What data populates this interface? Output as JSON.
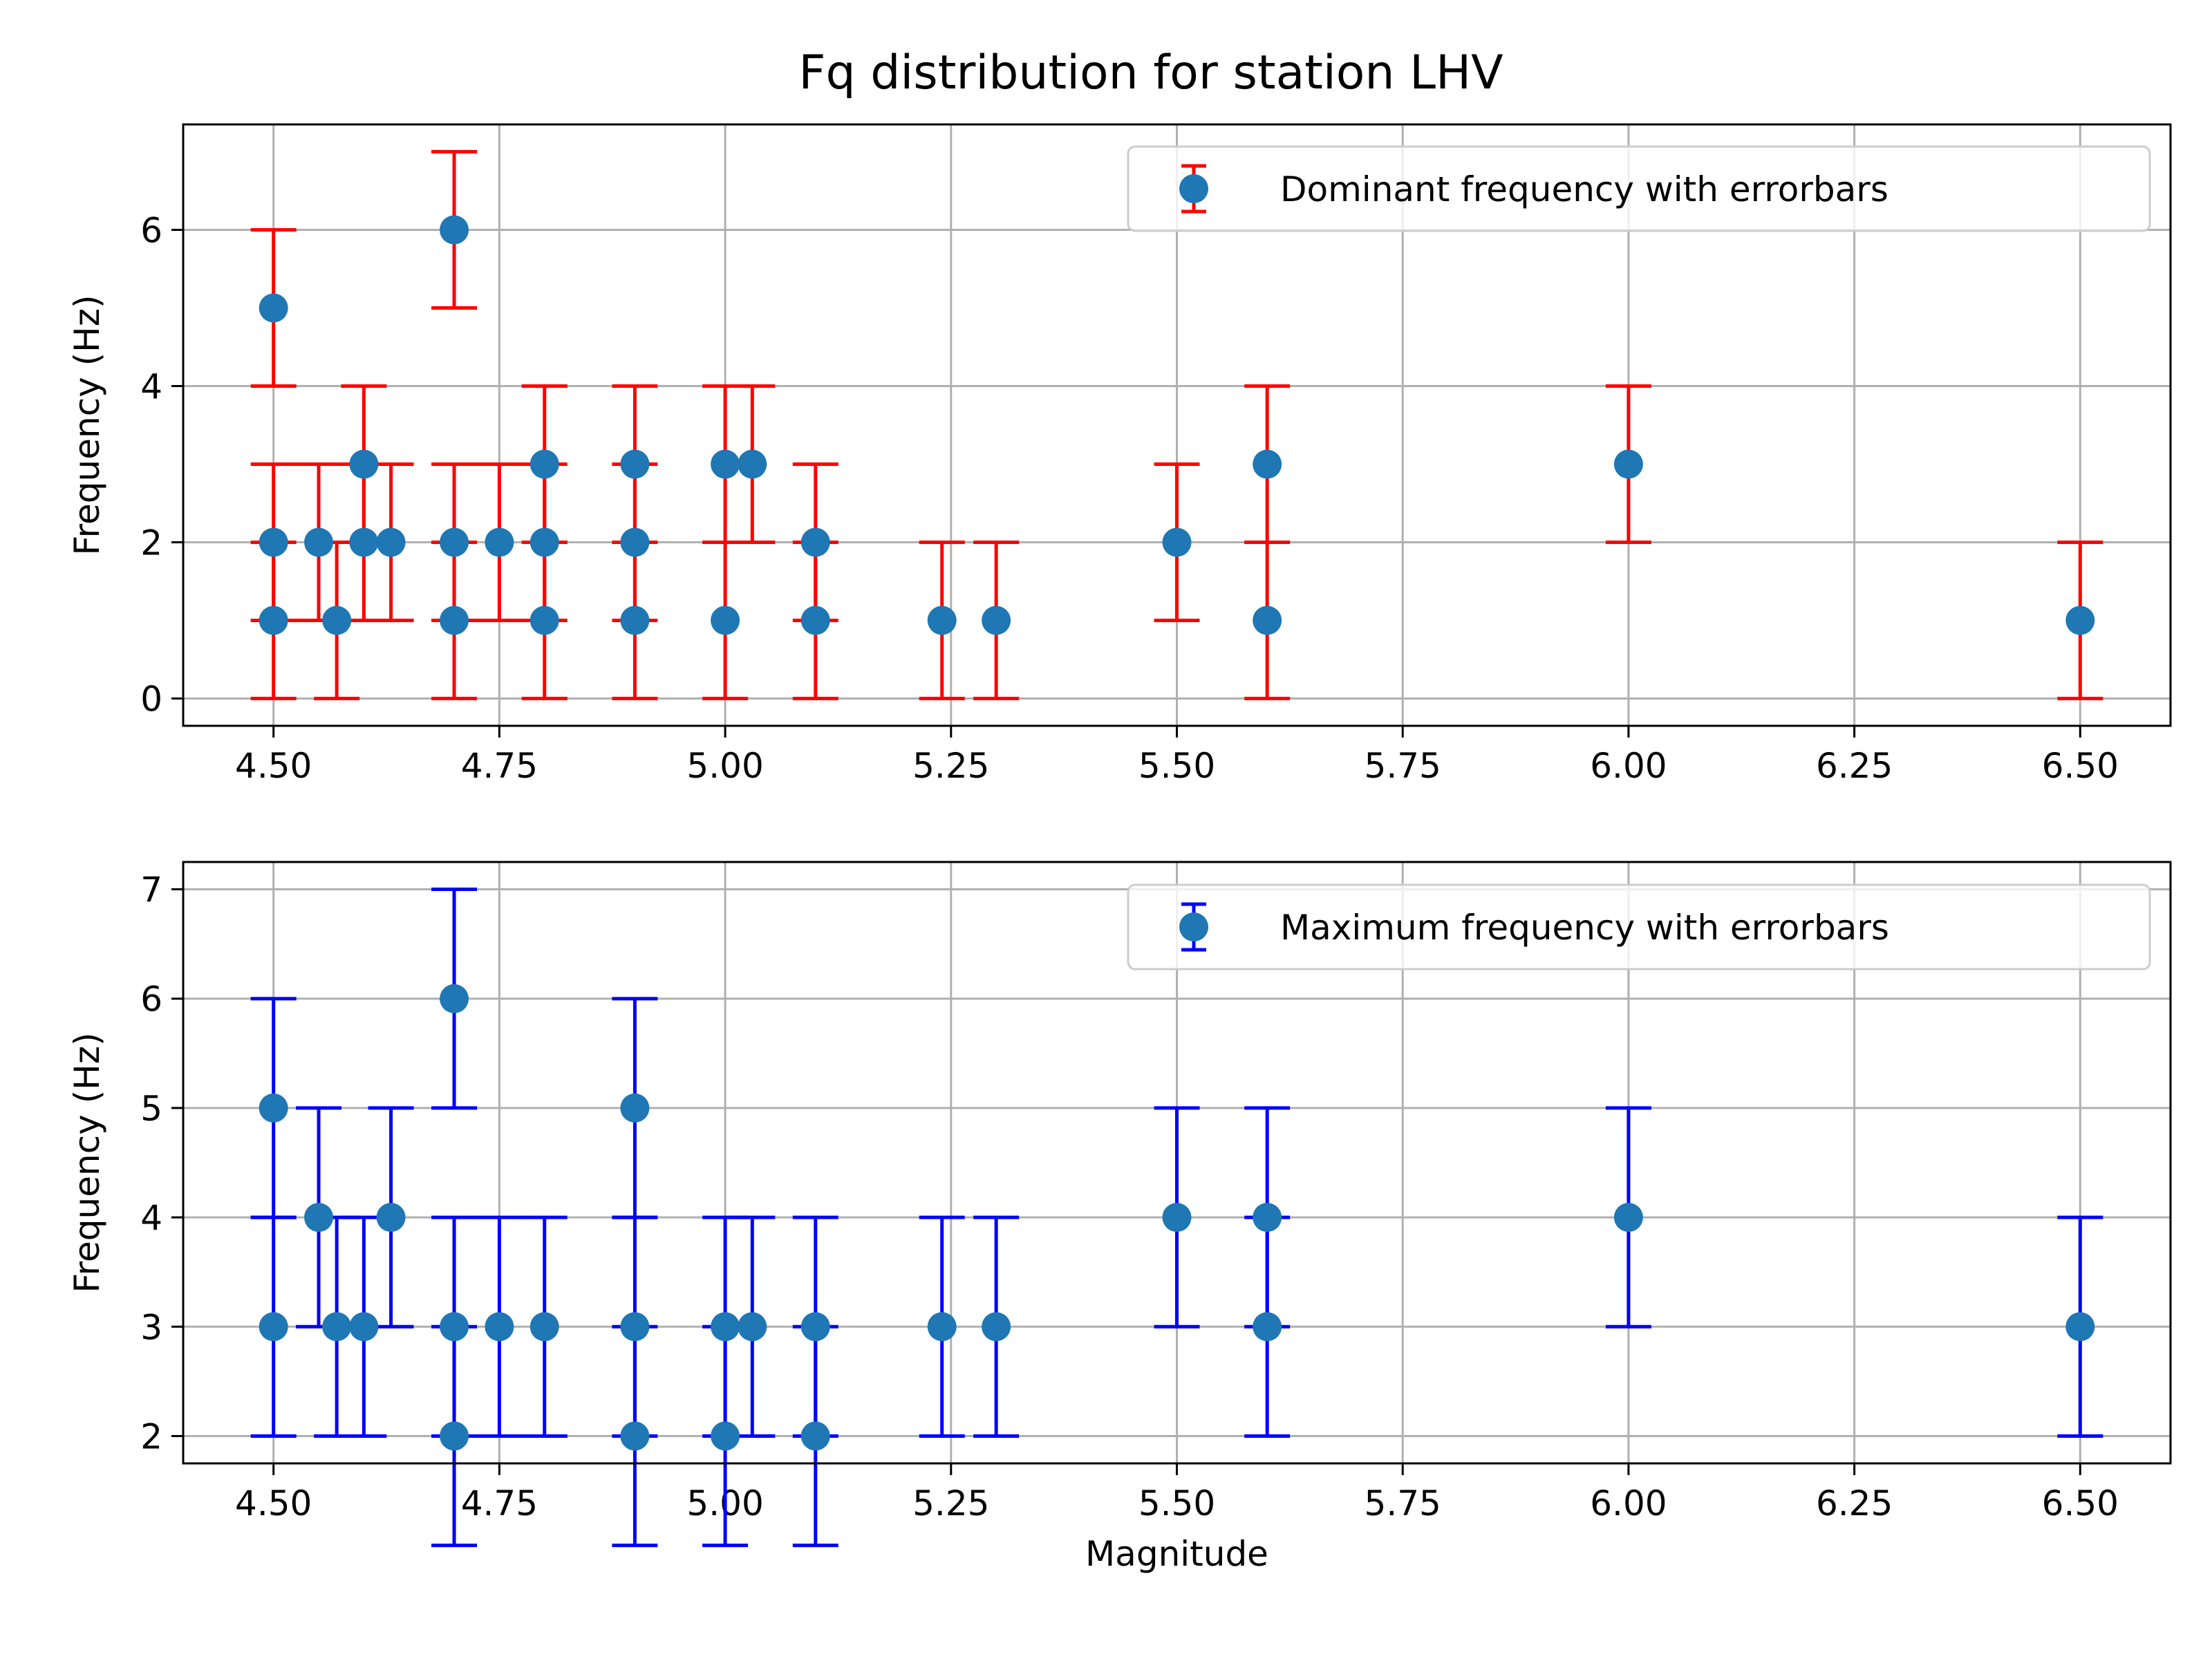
{
  "figure": {
    "title": "Fq distribution for station LHV"
  },
  "colors": {
    "marker": "#1f77b4",
    "dominant_err": "#ff0000",
    "maximum_err": "#0000ff",
    "grid": "#b0b0b0"
  },
  "chart_data": [
    {
      "type": "scatter",
      "title": "",
      "xlabel": "",
      "ylabel": "Frequency (Hz)",
      "xlim": [
        4.4,
        6.6
      ],
      "ylim": [
        -0.35,
        7.35
      ],
      "xticks": [
        4.5,
        4.75,
        5.0,
        5.25,
        5.5,
        5.75,
        6.0,
        6.25,
        6.5
      ],
      "xtick_labels": [
        "4.50",
        "4.75",
        "5.00",
        "5.25",
        "5.50",
        "5.75",
        "6.00",
        "6.25",
        "6.50"
      ],
      "yticks": [
        0,
        2,
        4,
        6
      ],
      "ytick_labels": [
        "0",
        "2",
        "4",
        "6"
      ],
      "grid": true,
      "legend_position": "top-right",
      "series": [
        {
          "name": "Dominant frequency with errorbars",
          "error": 1,
          "x": [
            4.5,
            4.5,
            4.5,
            4.55,
            4.57,
            4.6,
            4.6,
            4.63,
            4.7,
            4.7,
            4.7,
            4.75,
            4.8,
            4.8,
            4.8,
            4.9,
            4.9,
            4.9,
            5.0,
            5.0,
            5.03,
            5.1,
            5.1,
            5.24,
            5.3,
            5.5,
            5.6,
            5.6,
            6.0,
            6.5
          ],
          "y": [
            5,
            2,
            1,
            2,
            1,
            3,
            2,
            2,
            6,
            2,
            1,
            2,
            3,
            2,
            1,
            3,
            2,
            1,
            3,
            1,
            3,
            2,
            1,
            1,
            1,
            2,
            3,
            1,
            3,
            1
          ]
        }
      ]
    },
    {
      "type": "scatter",
      "title": "",
      "xlabel": "Magnitude",
      "ylabel": "Frequency (Hz)",
      "xlim": [
        4.4,
        6.6
      ],
      "ylim": [
        1.75,
        7.25
      ],
      "xticks": [
        4.5,
        4.75,
        5.0,
        5.25,
        5.5,
        5.75,
        6.0,
        6.25,
        6.5
      ],
      "xtick_labels": [
        "4.50",
        "4.75",
        "5.00",
        "5.25",
        "5.50",
        "5.75",
        "6.00",
        "6.25",
        "6.50"
      ],
      "yticks": [
        2,
        3,
        4,
        5,
        6,
        7
      ],
      "ytick_labels": [
        "2",
        "3",
        "4",
        "5",
        "6",
        "7"
      ],
      "grid": true,
      "legend_position": "top-right",
      "series": [
        {
          "name": "Maximum frequency with errorbars",
          "error": 1,
          "x": [
            4.5,
            4.5,
            4.55,
            4.57,
            4.6,
            4.63,
            4.7,
            4.7,
            4.7,
            4.75,
            4.8,
            4.9,
            4.9,
            4.9,
            5.0,
            5.0,
            5.03,
            5.1,
            5.1,
            5.24,
            5.3,
            5.5,
            5.6,
            5.6,
            6.0,
            6.5
          ],
          "y": [
            5,
            3,
            4,
            3,
            3,
            4,
            6,
            3,
            2,
            3,
            3,
            5,
            3,
            2,
            3,
            2,
            3,
            3,
            2,
            3,
            3,
            4,
            4,
            3,
            4,
            3
          ]
        }
      ]
    }
  ]
}
